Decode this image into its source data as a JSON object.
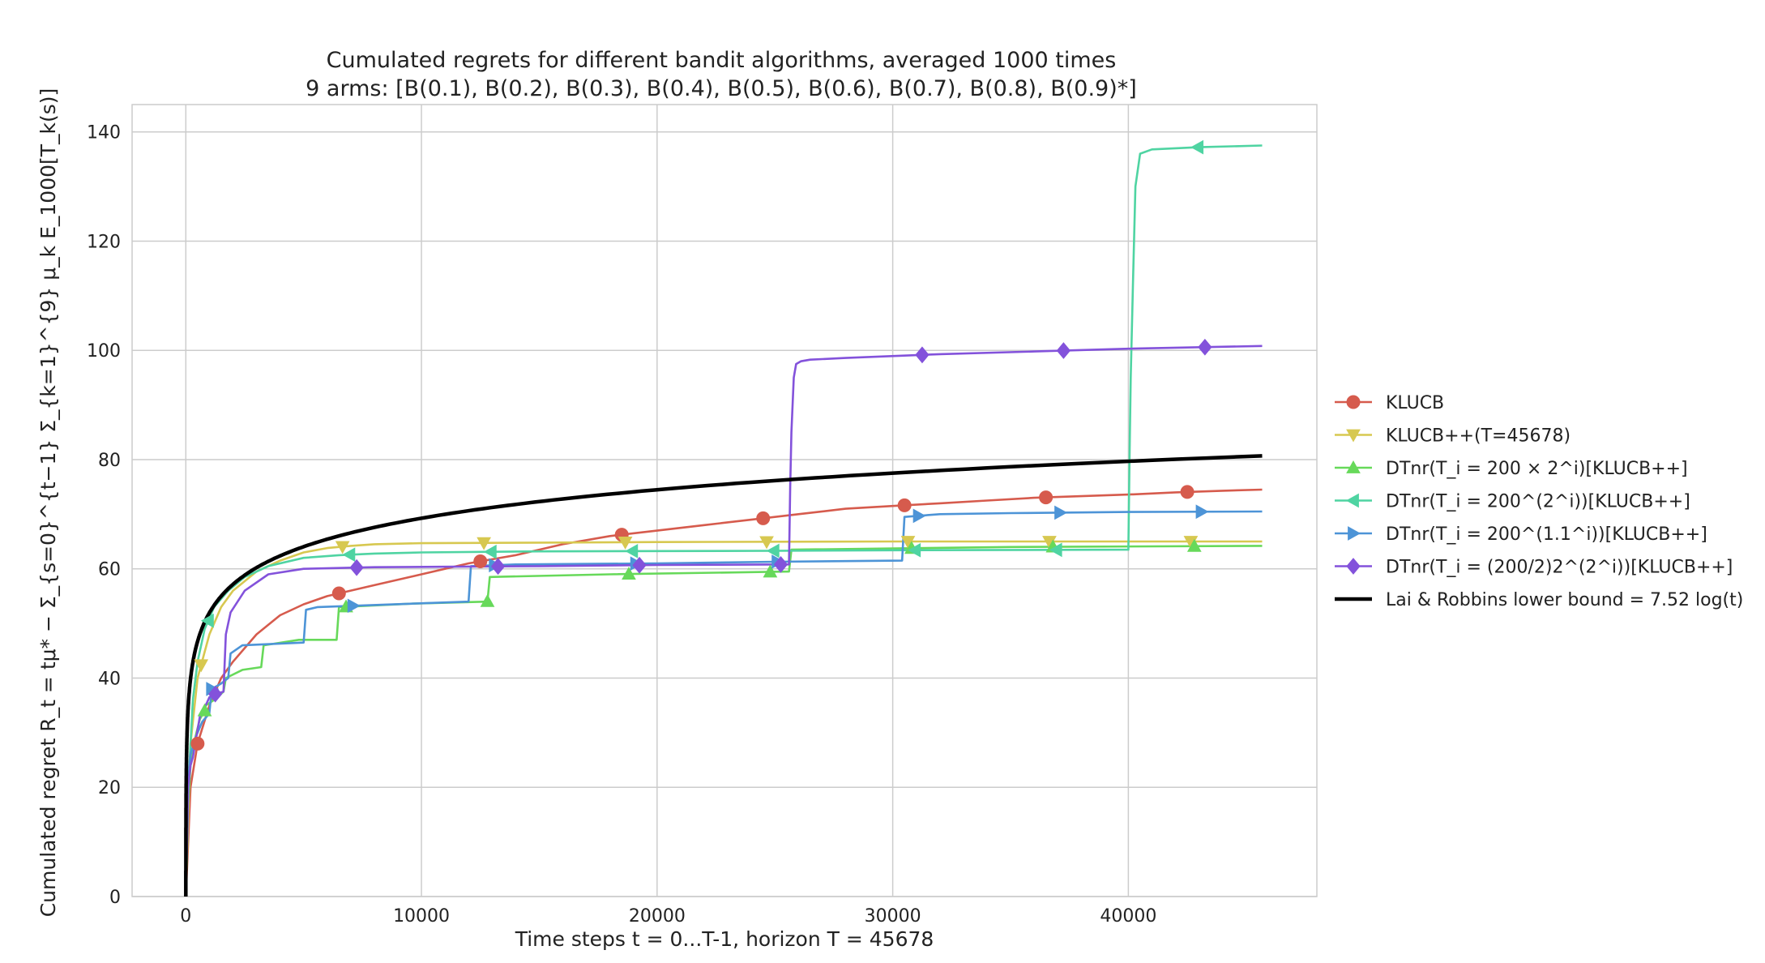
{
  "chart_data": {
    "type": "line",
    "title": "Cumulated regrets for different bandit algorithms, averaged 1000 times",
    "subtitle": "9 arms: [B(0.1), B(0.2), B(0.3), B(0.4), B(0.5), B(0.6), B(0.7), B(0.8), B(0.9)*]",
    "xlabel": "Time steps t = 0...T-1, horizon T = 45678",
    "ylabel": "Cumulated regret R_t = tμ* − Σ_{s=0}^{t−1} Σ_{k=1}^{9} μ_k E_1000[T_k(s)]",
    "xlim": [
      -2280,
      48000
    ],
    "ylim": [
      0,
      145
    ],
    "xticks": [
      0,
      10000,
      20000,
      30000,
      40000
    ],
    "yticks": [
      0,
      20,
      40,
      60,
      80,
      100,
      120,
      140
    ],
    "grid": true,
    "legend_position": "right",
    "series": [
      {
        "name": "KLUCB",
        "color": "#d65b4d",
        "marker": "circle",
        "x": [
          0,
          200,
          500,
          1000,
          1500,
          2000,
          3000,
          4000,
          5000,
          6000,
          8000,
          10000,
          12000,
          14000,
          16000,
          18000,
          20000,
          22000,
          24000,
          26000,
          28000,
          30000,
          32000,
          34000,
          36000,
          38000,
          40000,
          42000,
          44000,
          45678
        ],
        "y": [
          0,
          20,
          28,
          35,
          40,
          43,
          48,
          51.5,
          53.5,
          55,
          57,
          59,
          61,
          62.5,
          64.5,
          66,
          67,
          68,
          69,
          70,
          71,
          71.5,
          72,
          72.5,
          73,
          73.3,
          73.6,
          74,
          74.3,
          74.5
        ]
      },
      {
        "name": "KLUCB++(T=45678)",
        "color": "#d7c850",
        "marker": "triangle-down",
        "x": [
          0,
          200,
          500,
          1000,
          1500,
          2000,
          3000,
          4000,
          5000,
          6000,
          7000,
          8000,
          10000,
          15000,
          20000,
          30000,
          40000,
          45678
        ],
        "y": [
          0,
          28,
          40,
          48,
          53,
          56,
          59.5,
          61.5,
          63,
          63.8,
          64.2,
          64.5,
          64.7,
          64.8,
          64.9,
          65,
          65,
          65
        ]
      },
      {
        "name": "DTnr(T_i = 200 × 2^i)[KLUCB++]",
        "color": "#67d95a",
        "marker": "triangle-up",
        "x": [
          0,
          100,
          199,
          250,
          350,
          399,
          450,
          600,
          799,
          850,
          1200,
          1599,
          1700,
          2400,
          3199,
          3300,
          4800,
          6399,
          6500,
          9500,
          12799,
          12900,
          18000,
          25599,
          25700,
          35000,
          45678
        ],
        "y": [
          0,
          17,
          24,
          25,
          28,
          29,
          30,
          32.5,
          34,
          35,
          36,
          37.5,
          40,
          41.5,
          42,
          46,
          47,
          47,
          53,
          53.6,
          54,
          58.5,
          59,
          59.5,
          63.5,
          64,
          64.2
        ]
      },
      {
        "name": "DTnr(T_i = 200^(2^i))[KLUCB++]",
        "color": "#4fd4a2",
        "marker": "triangle-left",
        "x": [
          0,
          100,
          199,
          300,
          500,
          800,
          1200,
          1800,
          2500,
          3500,
          5000,
          6500,
          8000,
          10000,
          15000,
          25000,
          30000,
          39999,
          40050,
          40100,
          40200,
          40300,
          40500,
          41000,
          42000,
          43000,
          45678
        ],
        "y": [
          0,
          19,
          28,
          36,
          43,
          49,
          53,
          56,
          58.5,
          60.5,
          62,
          62.5,
          62.8,
          63,
          63.2,
          63.3,
          63.4,
          63.5,
          80,
          95,
          113,
          130,
          136,
          136.8,
          137,
          137.2,
          137.5
        ]
      },
      {
        "name": "DTnr(T_i = 200^(1.1^i))[KLUCB++]",
        "color": "#4d94d7",
        "marker": "triangle-right",
        "x": [
          0,
          100,
          199,
          400,
          700,
          999,
          1100,
          1500,
          1799,
          1900,
          2400,
          4999,
          5100,
          5600,
          11999,
          12100,
          14000,
          20000,
          25000,
          30399,
          30500,
          32000,
          35000,
          40000,
          45678
        ],
        "y": [
          0,
          21,
          26,
          29,
          32,
          33.5,
          38,
          39,
          40,
          44.5,
          46,
          46.5,
          52.5,
          53,
          54,
          60.5,
          60.8,
          61,
          61.3,
          61.5,
          69.5,
          70,
          70.2,
          70.4,
          70.5
        ]
      },
      {
        "name": "DTnr(T_i = (200/2)2^(2^i))[KLUCB++]",
        "color": "#8352db",
        "marker": "diamond",
        "x": [
          0,
          100,
          199,
          300,
          400,
          600,
          899,
          1000,
          1200,
          1599,
          1700,
          1900,
          2500,
          3500,
          5000,
          8000,
          15000,
          20000,
          25599,
          25650,
          25700,
          25800,
          25900,
          26100,
          26500,
          28000,
          32000,
          36000,
          40000,
          45678
        ],
        "y": [
          0,
          20,
          24,
          25.5,
          28,
          33,
          35.5,
          36.5,
          37,
          37.5,
          48,
          52,
          56,
          59,
          60,
          60.3,
          60.5,
          60.7,
          60.8,
          75,
          85,
          95,
          97.5,
          98,
          98.3,
          98.6,
          99.3,
          99.8,
          100.3,
          100.8
        ]
      },
      {
        "name": "Lai & Robbins lower bound = 7.52 log(t)",
        "color": "#000000",
        "marker": "none",
        "function": "7.52*ln(t)",
        "x_range": [
          1,
          45678
        ]
      }
    ]
  }
}
